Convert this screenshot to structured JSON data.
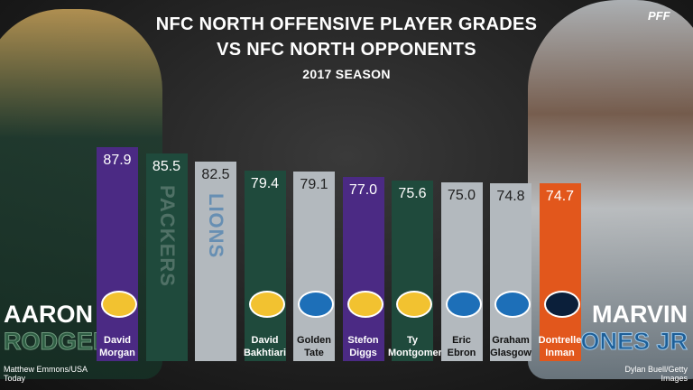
{
  "logo": "PFF",
  "left_player": {
    "first": "AARON",
    "last": "RODGERS",
    "credit": "Matthew Emmons/USA Today"
  },
  "right_player": {
    "first": "MARVIN",
    "last": "JONES JR",
    "credit": "Dylan Buell/Getty Images"
  },
  "chart_data": {
    "type": "bar",
    "title": [
      "NFC NORTH OFFENSIVE PLAYER GRADES",
      "VS NFC NORTH OPPONENTS"
    ],
    "subtitle": "2017 SEASON",
    "categories": [
      "David Morgan",
      null,
      null,
      "David Bakhtiari",
      "Golden Tate",
      "Stefon Diggs",
      "Ty Montgomery",
      "Eric Ebron",
      "Graham Glasgow",
      "Dontrelle Inman"
    ],
    "team_labels": [
      null,
      "PACKERS",
      "LIONS",
      null,
      null,
      null,
      null,
      null,
      null,
      null
    ],
    "values": [
      87.9,
      85.5,
      82.5,
      79.4,
      79.1,
      77,
      75.6,
      75,
      74.8,
      74.7
    ],
    "value_labels": [
      "87.9",
      "85.5",
      "82.5",
      "79.4",
      "79.1",
      "77.0",
      "75.6",
      "75.0",
      "74.8",
      "74.7"
    ],
    "colors": [
      "#4b2a84",
      "#1f4a3c",
      "#b3b9be",
      "#1f4a3c",
      "#b3b9be",
      "#4b2a84",
      "#1f4a3c",
      "#b3b9be",
      "#b3b9be",
      "#e2571c"
    ]
  }
}
